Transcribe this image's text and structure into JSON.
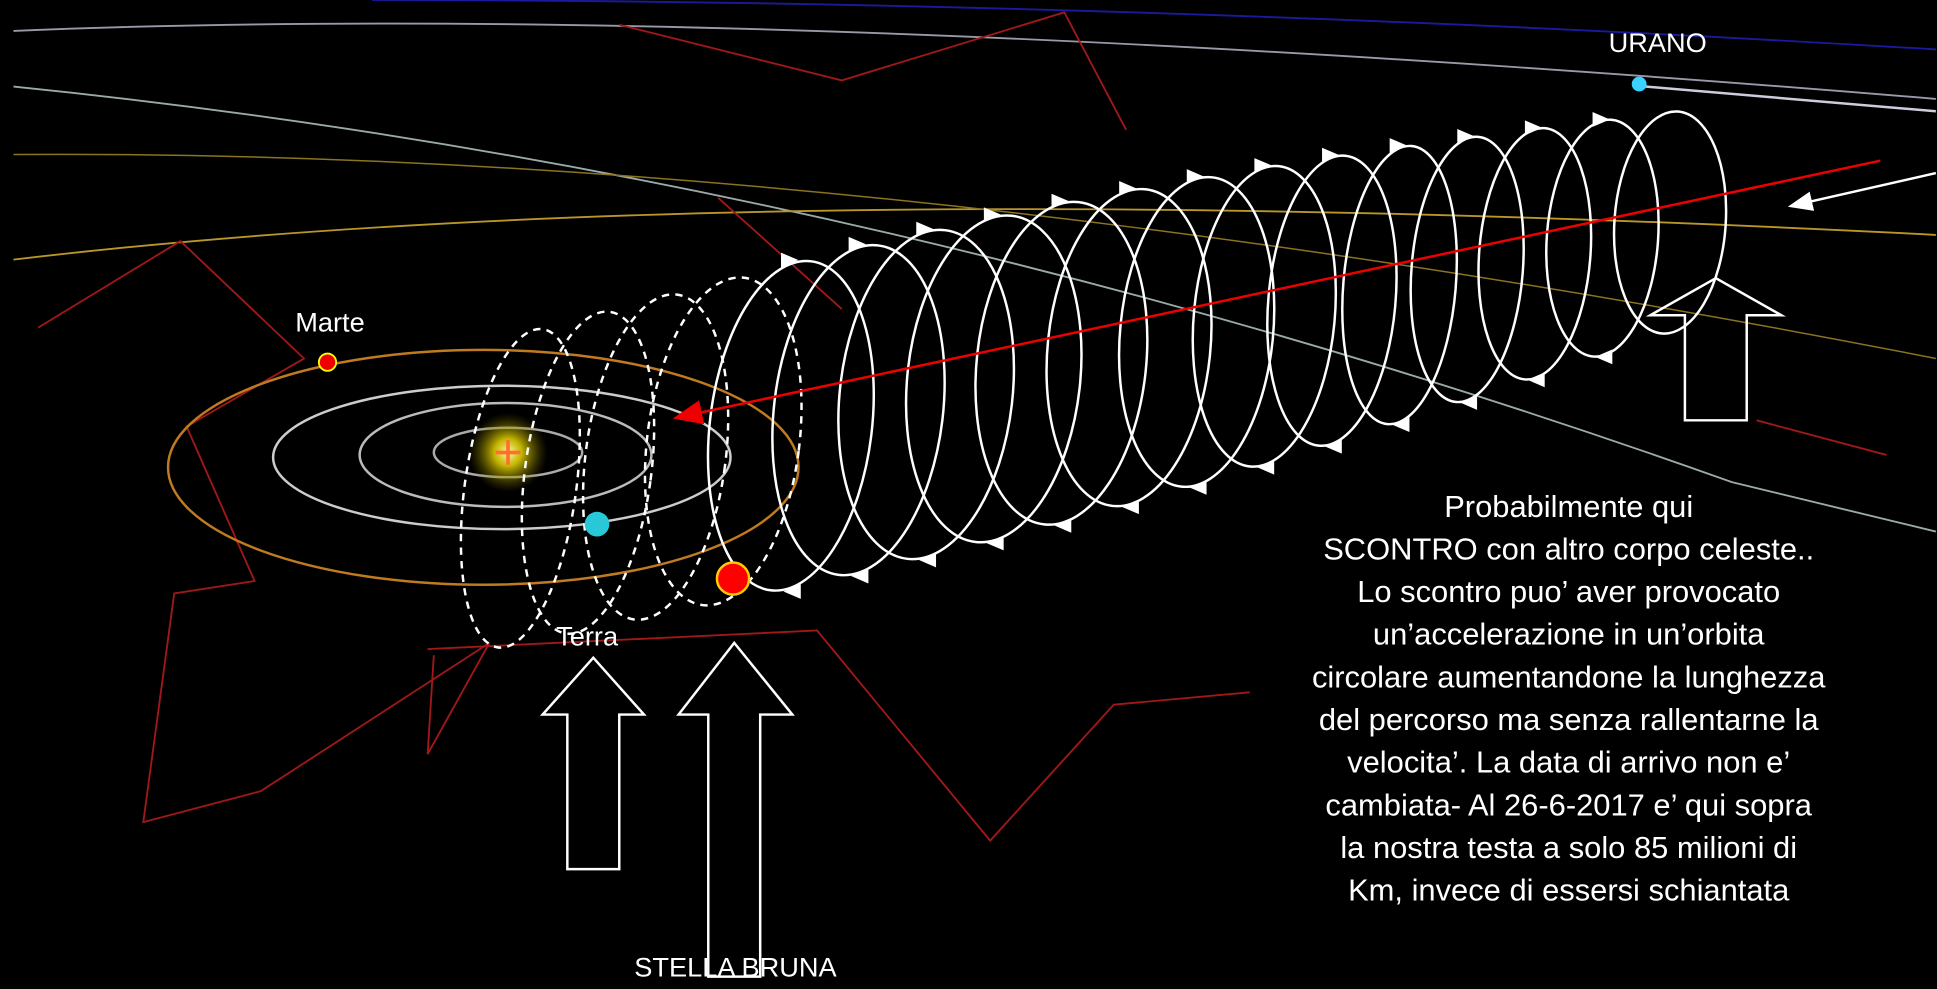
{
  "labels": {
    "urano": "URANO",
    "marte": "Marte",
    "terra": "Terra",
    "stella_bruna": "STELLA BRUNA"
  },
  "note": {
    "lines": [
      "Probabilmente qui",
      "SCONTRO con altro corpo celeste..",
      "Lo scontro puo’ aver provocato",
      "un’accelerazione in un’orbita",
      "circolare aumentandone la lunghezza",
      "del percorso ma senza rallentarne la",
      "velocita’. La data di arrivo non e’",
      "cambiata- Al 26-6-2017 e’ qui sopra",
      "la nostra testa a solo 85 milioni di",
      "Km, invece di essersi schiantata"
    ]
  }
}
